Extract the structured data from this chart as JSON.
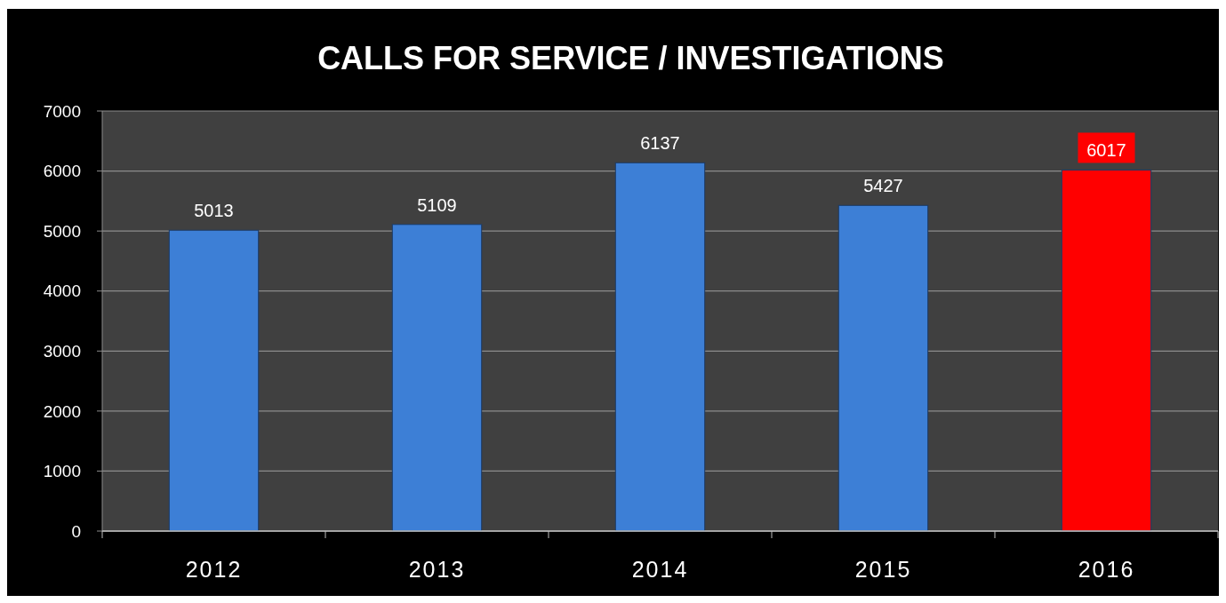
{
  "chart_data": {
    "type": "bar",
    "title": "CALLS FOR SERVICE / INVESTIGATIONS",
    "categories": [
      "2012",
      "2013",
      "2014",
      "2015",
      "2016"
    ],
    "values": [
      5013,
      5109,
      6137,
      5427,
      6017
    ],
    "colors": [
      "#3d7fd6",
      "#3d7fd6",
      "#3d7fd6",
      "#3d7fd6",
      "#ff0000"
    ],
    "ylim": [
      0,
      7000
    ],
    "yticks": [
      0,
      1000,
      2000,
      3000,
      4000,
      5000,
      6000,
      7000
    ],
    "grid": "y",
    "data_labels": true
  }
}
